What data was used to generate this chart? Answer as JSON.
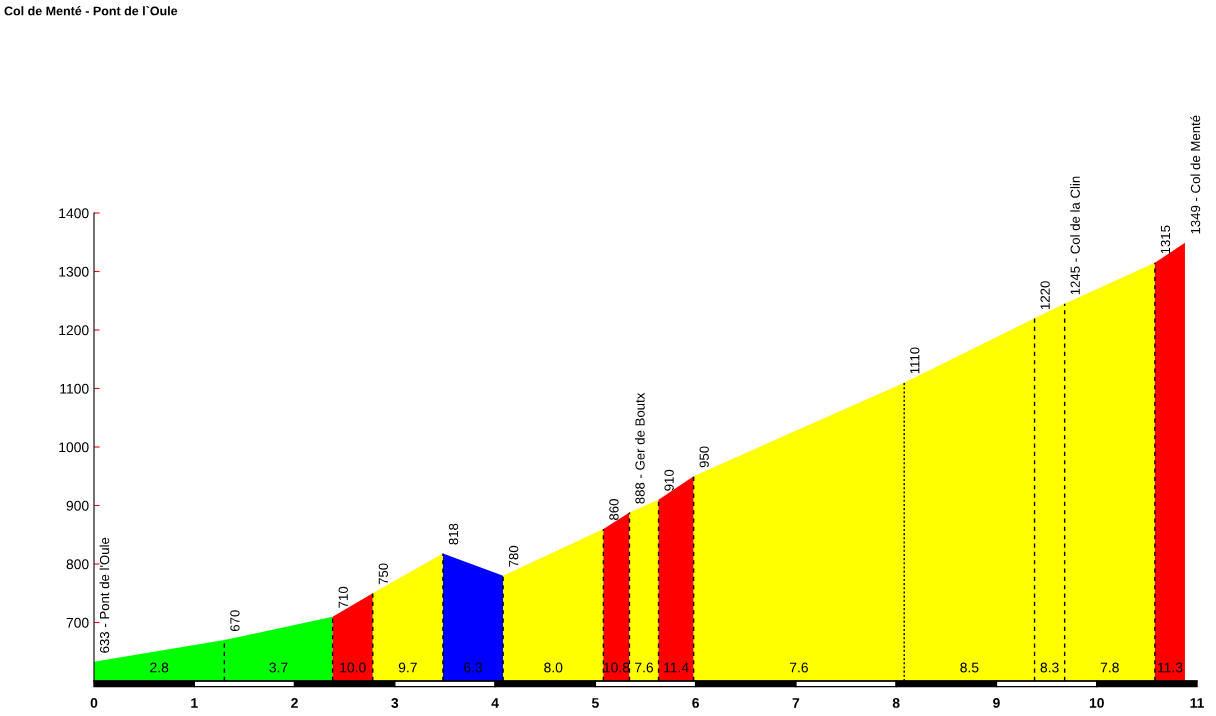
{
  "chart_data": {
    "type": "area",
    "title": "Col de Menté - Pont de l`Oule",
    "xlim": [
      0,
      11
    ],
    "xticks": [
      0,
      1,
      2,
      3,
      4,
      5,
      6,
      7,
      8,
      9,
      10,
      11
    ],
    "ylim": [
      600,
      1400
    ],
    "yticks": [
      700,
      800,
      900,
      1000,
      1100,
      1200,
      1300,
      1400
    ],
    "grid": false,
    "legend": false,
    "series": [
      {
        "color": "#00ff00",
        "x": [
          0,
          1.3,
          2.38
        ],
        "values": [
          633,
          670,
          710
        ]
      },
      {
        "color": "#ff0000",
        "x": [
          2.38,
          2.78
        ],
        "values": [
          710,
          750
        ]
      },
      {
        "color": "#ffff00",
        "x": [
          2.78,
          3.48
        ],
        "values": [
          750,
          818
        ]
      },
      {
        "color": "#0000ff",
        "x": [
          3.48,
          4.08
        ],
        "values": [
          818,
          780
        ]
      },
      {
        "color": "#ffff00",
        "x": [
          4.08,
          5.08
        ],
        "values": [
          780,
          860
        ]
      },
      {
        "color": "#ff0000",
        "x": [
          5.08,
          5.34
        ],
        "values": [
          860,
          888
        ]
      },
      {
        "color": "#ffff00",
        "x": [
          5.34,
          5.63
        ],
        "values": [
          888,
          910
        ]
      },
      {
        "color": "#ff0000",
        "x": [
          5.63,
          5.98
        ],
        "values": [
          910,
          950
        ]
      },
      {
        "color": "#ffff00",
        "x": [
          5.98,
          8.08,
          9.38,
          9.68,
          10.58
        ],
        "values": [
          950,
          1110,
          1220,
          1245,
          1315
        ]
      },
      {
        "color": "#ff0000",
        "x": [
          10.58,
          10.88
        ],
        "values": [
          1315,
          1349
        ]
      }
    ],
    "ref_lines": [
      {
        "axis": "x",
        "value": 1.3,
        "color": "#000000",
        "line_style": "dashed"
      },
      {
        "axis": "x",
        "value": 2.38,
        "color": "#000000",
        "line_style": "dashed"
      },
      {
        "axis": "x",
        "value": 2.78,
        "color": "#000000",
        "line_style": "dashed"
      },
      {
        "axis": "x",
        "value": 3.48,
        "color": "#000000",
        "line_style": "dashed"
      },
      {
        "axis": "x",
        "value": 4.08,
        "color": "#000000",
        "line_style": "dashed"
      },
      {
        "axis": "x",
        "value": 5.08,
        "color": "#000000",
        "line_style": "dashed"
      },
      {
        "axis": "x",
        "value": 5.34,
        "color": "#000000",
        "line_style": "dashed"
      },
      {
        "axis": "x",
        "value": 5.63,
        "color": "#000000",
        "line_style": "dashed"
      },
      {
        "axis": "x",
        "value": 5.98,
        "color": "#000000",
        "line_style": "dashed"
      },
      {
        "axis": "x",
        "value": 8.08,
        "color": "#000000",
        "line_style": "dotted"
      },
      {
        "axis": "x",
        "value": 9.38,
        "color": "#000000",
        "line_style": "dashed"
      },
      {
        "axis": "x",
        "value": 9.68,
        "color": "#000000",
        "line_style": "dashed"
      },
      {
        "axis": "x",
        "value": 10.58,
        "color": "#000000",
        "line_style": "dashed"
      }
    ],
    "annotations": [
      {
        "text": "633 - Pont de l'Oule",
        "x": 0,
        "y": 633
      },
      {
        "text": "670",
        "x": 1.3,
        "y": 670
      },
      {
        "text": "710",
        "x": 2.38,
        "y": 710
      },
      {
        "text": "750",
        "x": 2.78,
        "y": 750
      },
      {
        "text": "818",
        "x": 3.48,
        "y": 818
      },
      {
        "text": "780",
        "x": 4.08,
        "y": 780
      },
      {
        "text": "860",
        "x": 5.08,
        "y": 860
      },
      {
        "text": "888 - Ger de Boutx",
        "x": 5.34,
        "y": 888
      },
      {
        "text": "910",
        "x": 5.63,
        "y": 910
      },
      {
        "text": "950",
        "x": 5.98,
        "y": 950
      },
      {
        "text": "1110",
        "x": 8.08,
        "y": 1110
      },
      {
        "text": "1220",
        "x": 9.38,
        "y": 1220
      },
      {
        "text": "1245 - Col de la Clin",
        "x": 9.68,
        "y": 1245
      },
      {
        "text": "1315",
        "x": 10.58,
        "y": 1315
      },
      {
        "text": "1349 - Col de Menté",
        "x": 10.88,
        "y": 1349
      },
      "2.8",
      "3.7",
      "10.0",
      "9.7",
      "6.3",
      "8.0",
      "10.8",
      "7.6",
      "11.4",
      "7.6",
      "8.5",
      "8.3",
      "7.8",
      "11.3"
    ]
  }
}
